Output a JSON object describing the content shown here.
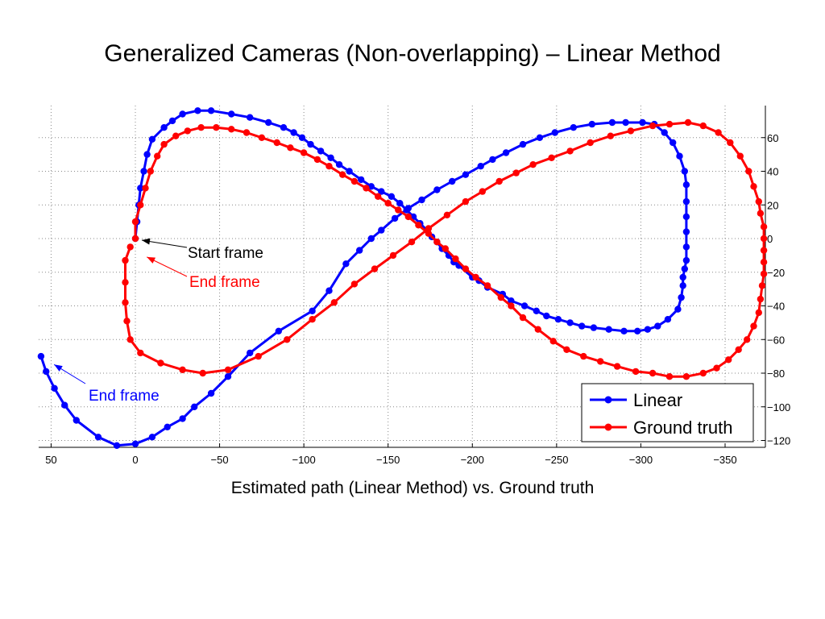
{
  "slide": {
    "title": "Generalized Cameras (Non-overlapping) – Linear Method",
    "caption": "Estimated path (Linear Method) vs. Ground truth"
  },
  "chart_data": {
    "type": "line",
    "title": "",
    "xlabel": "",
    "ylabel": "",
    "xlim": [
      50,
      -370
    ],
    "ylim": [
      -122,
      78
    ],
    "x_reversed": true,
    "y_axis_side": "right",
    "grid": true,
    "legend_position": "bottom-right",
    "x_ticks": [
      50,
      0,
      -50,
      -100,
      -150,
      -200,
      -250,
      -300,
      -350
    ],
    "y_ticks": [
      60,
      40,
      20,
      0,
      -20,
      -40,
      -60,
      -80,
      -100,
      -120
    ],
    "x_tick_labels": [
      "50",
      "0",
      "−50",
      "−100",
      "−150",
      "−200",
      "−250",
      "−300",
      "−350"
    ],
    "y_tick_labels": [
      "60",
      "40",
      "20",
      "0",
      "−20",
      "−40",
      "−60",
      "−80",
      "−100",
      "−120"
    ],
    "annotations": [
      {
        "text": "Start frame",
        "color": "#000000",
        "point": [
          0,
          0
        ]
      },
      {
        "text": "End frame",
        "color": "#ff0000",
        "point": [
          -3,
          -10
        ]
      },
      {
        "text": "End frame",
        "color": "#0000ff",
        "point": [
          53,
          -72
        ]
      }
    ],
    "series": [
      {
        "name": "Linear",
        "color": "#0000ff",
        "points": [
          [
            0,
            0
          ],
          [
            -1,
            10
          ],
          [
            -2,
            20
          ],
          [
            -3,
            30
          ],
          [
            -5,
            40
          ],
          [
            -7,
            50
          ],
          [
            -10,
            59
          ],
          [
            -17,
            66
          ],
          [
            -22,
            70
          ],
          [
            -28,
            74
          ],
          [
            -37,
            76
          ],
          [
            -45,
            76
          ],
          [
            -57,
            74
          ],
          [
            -68,
            72
          ],
          [
            -79,
            69
          ],
          [
            -88,
            66
          ],
          [
            -94,
            63
          ],
          [
            -99,
            60
          ],
          [
            -104,
            56
          ],
          [
            -110,
            52
          ],
          [
            -116,
            48
          ],
          [
            -121,
            44
          ],
          [
            -127,
            40
          ],
          [
            -134,
            35
          ],
          [
            -140,
            31
          ],
          [
            -146,
            28
          ],
          [
            -152,
            25
          ],
          [
            -157,
            21
          ],
          [
            -161,
            17
          ],
          [
            -165,
            13
          ],
          [
            -169,
            9
          ],
          [
            -173,
            5
          ],
          [
            -176,
            1
          ],
          [
            -179,
            -2
          ],
          [
            -182,
            -6
          ],
          [
            -186,
            -10
          ],
          [
            -189,
            -14
          ],
          [
            -192,
            -16
          ],
          [
            -200,
            -23
          ],
          [
            -204,
            -25
          ],
          [
            -209,
            -29
          ],
          [
            -218,
            -33
          ],
          [
            -223,
            -37
          ],
          [
            -231,
            -40
          ],
          [
            -238,
            -43
          ],
          [
            -244,
            -46
          ],
          [
            -251,
            -48
          ],
          [
            -258,
            -50
          ],
          [
            -265,
            -52
          ],
          [
            -272,
            -53
          ],
          [
            -281,
            -54
          ],
          [
            -290,
            -55
          ],
          [
            -298,
            -55
          ],
          [
            -304,
            -54
          ],
          [
            -310,
            -52
          ],
          [
            -316,
            -48
          ],
          [
            -322,
            -42
          ],
          [
            -324,
            -35
          ],
          [
            -325,
            -28
          ],
          [
            -325,
            -23
          ],
          [
            -326,
            -18
          ],
          [
            -327,
            -13
          ],
          [
            -327,
            -5
          ],
          [
            -327,
            4
          ],
          [
            -327,
            13
          ],
          [
            -327,
            22
          ],
          [
            -327,
            32
          ],
          [
            -326,
            40
          ],
          [
            -323,
            49
          ],
          [
            -319,
            57
          ],
          [
            -314,
            63
          ],
          [
            -308,
            68
          ],
          [
            -301,
            69
          ],
          [
            -291,
            69
          ],
          [
            -283,
            69
          ],
          [
            -271,
            68
          ],
          [
            -260,
            66
          ],
          [
            -249,
            63
          ],
          [
            -240,
            60
          ],
          [
            -230,
            56
          ],
          [
            -220,
            51
          ],
          [
            -212,
            47
          ],
          [
            -205,
            43
          ],
          [
            -196,
            38
          ],
          [
            -188,
            34
          ],
          [
            -179,
            29
          ],
          [
            -170,
            23
          ],
          [
            -162,
            18
          ],
          [
            -154,
            12
          ],
          [
            -146,
            5
          ],
          [
            -140,
            0
          ],
          [
            -133,
            -7
          ],
          [
            -125,
            -15
          ],
          [
            -115,
            -31
          ],
          [
            -105,
            -43
          ],
          [
            -85,
            -55
          ],
          [
            -68,
            -68
          ],
          [
            -55,
            -82
          ],
          [
            -45,
            -92
          ],
          [
            -35,
            -100
          ],
          [
            -28,
            -107
          ],
          [
            -19,
            -112
          ],
          [
            -10,
            -118
          ],
          [
            0,
            -122
          ],
          [
            11,
            -123
          ],
          [
            22,
            -118
          ],
          [
            35,
            -108
          ],
          [
            42,
            -99
          ],
          [
            48,
            -89
          ],
          [
            53,
            -79
          ],
          [
            56,
            -70
          ]
        ]
      },
      {
        "name": "Ground truth",
        "color": "#ff0000",
        "points": [
          [
            0,
            0
          ],
          [
            0,
            10
          ],
          [
            -3,
            20
          ],
          [
            -6,
            30
          ],
          [
            -9,
            40
          ],
          [
            -13,
            49
          ],
          [
            -17,
            56
          ],
          [
            -24,
            61
          ],
          [
            -31,
            64
          ],
          [
            -39,
            66
          ],
          [
            -48,
            66
          ],
          [
            -57,
            65
          ],
          [
            -66,
            63
          ],
          [
            -75,
            60
          ],
          [
            -84,
            57
          ],
          [
            -92,
            54
          ],
          [
            -100,
            51
          ],
          [
            -108,
            47
          ],
          [
            -115,
            43
          ],
          [
            -123,
            38
          ],
          [
            -130,
            34
          ],
          [
            -137,
            30
          ],
          [
            -144,
            25
          ],
          [
            -150,
            21
          ],
          [
            -156,
            17
          ],
          [
            -162,
            13
          ],
          [
            -168,
            8
          ],
          [
            -174,
            3
          ],
          [
            -179,
            -2
          ],
          [
            -184,
            -6
          ],
          [
            -190,
            -12
          ],
          [
            -196,
            -18
          ],
          [
            -202,
            -23
          ],
          [
            -209,
            -28
          ],
          [
            -217,
            -35
          ],
          [
            -223,
            -40
          ],
          [
            -230,
            -47
          ],
          [
            -239,
            -54
          ],
          [
            -248,
            -61
          ],
          [
            -256,
            -66
          ],
          [
            -266,
            -70
          ],
          [
            -276,
            -73
          ],
          [
            -286,
            -76
          ],
          [
            -297,
            -79
          ],
          [
            -307,
            -80
          ],
          [
            -317,
            -82
          ],
          [
            -327,
            -82
          ],
          [
            -337,
            -80
          ],
          [
            -345,
            -77
          ],
          [
            -352,
            -72
          ],
          [
            -358,
            -66
          ],
          [
            -363,
            -60
          ],
          [
            -367,
            -52
          ],
          [
            -370,
            -44
          ],
          [
            -371,
            -36
          ],
          [
            -372,
            -28
          ],
          [
            -373,
            -21
          ],
          [
            -373,
            -14
          ],
          [
            -373,
            -7
          ],
          [
            -373,
            0
          ],
          [
            -373,
            7
          ],
          [
            -371,
            15
          ],
          [
            -370,
            22
          ],
          [
            -367,
            31
          ],
          [
            -364,
            40
          ],
          [
            -359,
            49
          ],
          [
            -353,
            57
          ],
          [
            -346,
            63
          ],
          [
            -337,
            67
          ],
          [
            -328,
            69
          ],
          [
            -317,
            68
          ],
          [
            -307,
            67
          ],
          [
            -294,
            64
          ],
          [
            -282,
            61
          ],
          [
            -270,
            57
          ],
          [
            -258,
            52
          ],
          [
            -247,
            48
          ],
          [
            -236,
            44
          ],
          [
            -226,
            39
          ],
          [
            -216,
            34
          ],
          [
            -206,
            28
          ],
          [
            -196,
            22
          ],
          [
            -185,
            14
          ],
          [
            -174,
            6
          ],
          [
            -164,
            -2
          ],
          [
            -153,
            -10
          ],
          [
            -142,
            -18
          ],
          [
            -130,
            -27
          ],
          [
            -118,
            -38
          ],
          [
            -105,
            -48
          ],
          [
            -90,
            -60
          ],
          [
            -73,
            -70
          ],
          [
            -55,
            -78
          ],
          [
            -40,
            -80
          ],
          [
            -28,
            -78
          ],
          [
            -15,
            -74
          ],
          [
            -3,
            -68
          ],
          [
            3,
            -60
          ],
          [
            5,
            -49
          ],
          [
            6,
            -38
          ],
          [
            6,
            -26
          ],
          [
            6,
            -13
          ],
          [
            3,
            -5
          ]
        ]
      }
    ]
  }
}
